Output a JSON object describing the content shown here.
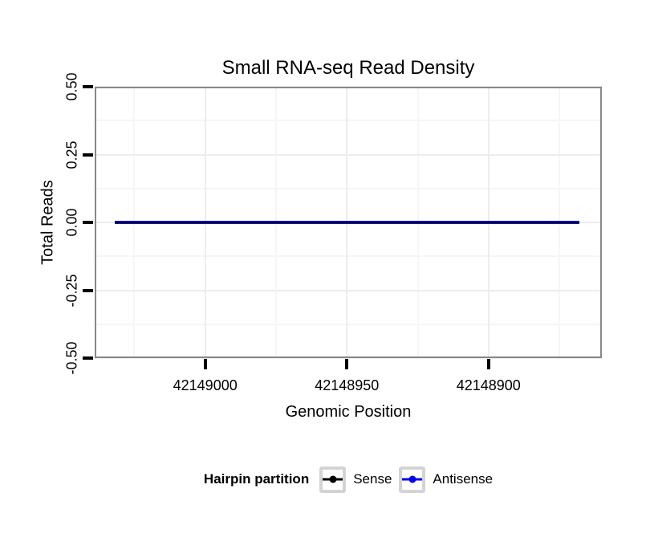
{
  "title": "Small RNA-seq Read Density",
  "axes": {
    "x": {
      "label": "Genomic Position",
      "ticks": [
        {
          "value": 42149000,
          "label": "42149000"
        },
        {
          "value": 42148950,
          "label": "42148950"
        },
        {
          "value": 42148900,
          "label": "42148900"
        }
      ],
      "minor_ticks": [
        42149025,
        42148975,
        42148925,
        42148875
      ],
      "range": [
        42149039,
        42148860
      ],
      "reversed": true
    },
    "y": {
      "label": "Total Reads",
      "ticks": [
        {
          "value": 0.5,
          "label": "0.50"
        },
        {
          "value": 0.25,
          "label": "0.25"
        },
        {
          "value": 0,
          "label": "0.00"
        },
        {
          "value": -0.25,
          "label": "-0.25"
        },
        {
          "value": -0.5,
          "label": "-0.50"
        }
      ],
      "minor_ticks": [
        0.375,
        0.125,
        -0.125,
        -0.375
      ],
      "range": [
        -0.5,
        0.5
      ]
    }
  },
  "legend": {
    "title": "Hairpin partition",
    "items": [
      {
        "label": "Sense",
        "color": "#000000"
      },
      {
        "label": "Antisense",
        "color": "#0000ee"
      }
    ]
  },
  "colors": {
    "panel_border": "#888888",
    "grid_major": "#ededed",
    "grid_minor": "#f6f6f6",
    "tick": "#000000"
  },
  "chart_data": {
    "type": "line",
    "title": "Small RNA-seq Read Density",
    "xlabel": "Genomic Position",
    "ylabel": "Total Reads",
    "x_ticks": [
      42149000,
      42148950,
      42148900
    ],
    "x_range": [
      42149039,
      42148860
    ],
    "x_reversed": true,
    "ylim": [
      -0.5,
      0.5
    ],
    "grid": true,
    "legend_title": "Hairpin partition",
    "legend_position": "bottom",
    "series": [
      {
        "name": "Sense",
        "color": "#000000",
        "x": [
          42149032,
          42148868
        ],
        "y": [
          0,
          0
        ]
      },
      {
        "name": "Antisense",
        "color": "#0000ee",
        "x": [
          42149032,
          42148868
        ],
        "y": [
          0,
          0
        ]
      }
    ]
  }
}
